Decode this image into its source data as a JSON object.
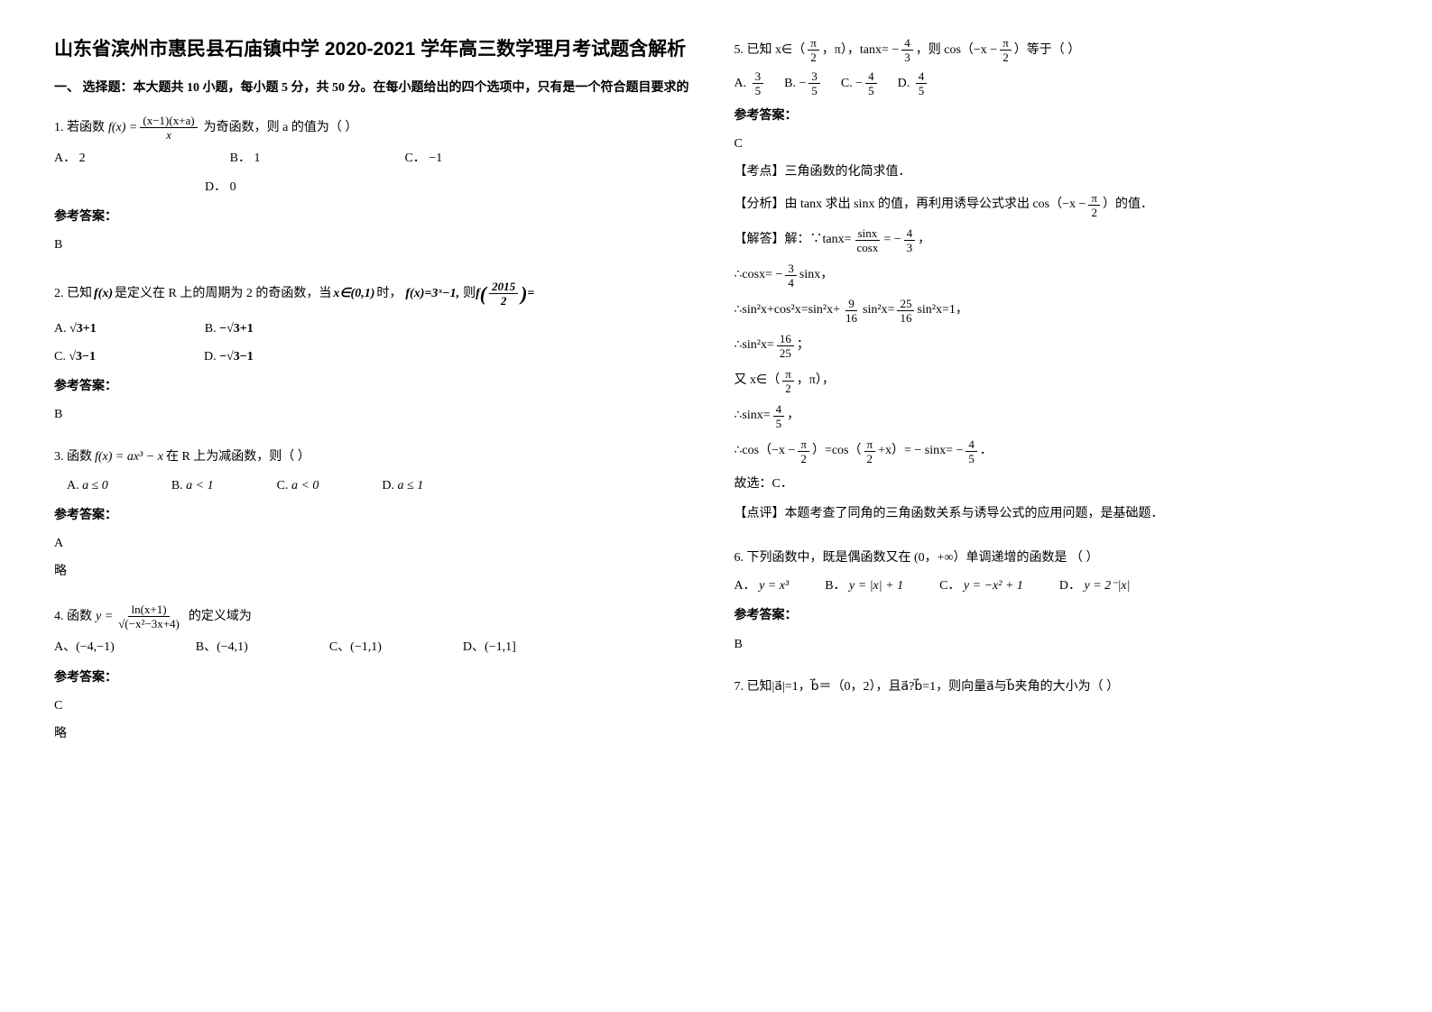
{
  "title": "山东省滨州市惠民县石庙镇中学 2020-2021 学年高三数学理月考试题含解析",
  "section1_header": "一、 选择题：本大题共 10 小题，每小题 5 分，共 50 分。在每小题给出的四个选项中，只有是一个符合题目要求的",
  "q1": {
    "prefix": "1. 若函数",
    "formula_img": "f(x) = (x−1)(x+a) / x",
    "suffix": "为奇函数，则 a 的值为（  ）",
    "optA": "A．  2",
    "optB": "B．  1",
    "optC": "C．  −1",
    "optD": "D．  0",
    "ans_label": "参考答案：",
    "ans": "B"
  },
  "q2": {
    "text1": "2. 已知",
    "fx": "f(x)",
    "text2": " 是定义在 R 上的周期为 2 的奇函数，当 ",
    "cond": "x∈(0,1)",
    "text3": "时，",
    "fx_eq": "f(x)=3ˣ−1,",
    "text4": " 则",
    "fval": "f(2015/2)=",
    "optA_label": "A.",
    "optA": "√3+1",
    "optB_label": "B.",
    "optB": "−√3+1",
    "optC_label": "C.",
    "optC": "√3−1",
    "optD_label": "D.",
    "optD": "−√3−1",
    "ans_label": "参考答案：",
    "ans": "B"
  },
  "q3": {
    "text": "3. 函数",
    "fx": "f(x) = ax³ − x",
    "suffix": " 在 R 上为减函数，则（    ）",
    "optA_label": "A.",
    "optA": "a ≤ 0",
    "optB_label": "B.",
    "optB": "a < 1",
    "optC_label": "C.",
    "optC": "a < 0",
    "optD_label": "D.",
    "optD": "a ≤ 1",
    "ans_label": "参考答案：",
    "ans": "A",
    "note": "略"
  },
  "q4": {
    "text": "4. 函数",
    "y_eq_num": "ln(x+1)",
    "y_eq_den": "√(−x²−3x+4)",
    "suffix": " 的定义域为",
    "optA_label": "A、",
    "optA": "(−4,−1)",
    "optB_label": "B、",
    "optB": "(−4,1)",
    "optC_label": "C、",
    "optC": "(−1,1)",
    "optD_label": "D、",
    "optD": "(−1,1]",
    "ans_label": "参考答案：",
    "ans": "C",
    "note": "略"
  },
  "q5": {
    "text1": "5. 已知 x∈（",
    "frac1_num": "π",
    "frac1_den": "2",
    "text2": "，π），tanx= −",
    "frac2_num": "4",
    "frac2_den": "3",
    "text3": "，则 cos（−x −",
    "frac3_num": "π",
    "frac3_den": "2",
    "text4": "）等于（    ）",
    "optA_label": "A.",
    "optA_num": "3",
    "optA_den": "5",
    "optB_label": "B.",
    "optB_neg": "−",
    "optB_num": "3",
    "optB_den": "5",
    "optC_label": "C.",
    "optC_neg": "−",
    "optC_num": "4",
    "optC_den": "5",
    "optD_label": "D.",
    "optD_num": "4",
    "optD_den": "5",
    "ans_label": "参考答案：",
    "ans": "C",
    "kd_label": "【考点】",
    "kd": "三角函数的化简求值．",
    "fx_label": "【分析】",
    "fx_text1": "由 tanx 求出 sinx 的值，再利用诱导公式求出 cos（−x −",
    "fx_pi_num": "π",
    "fx_pi_den": "2",
    "fx_text2": "）的值．",
    "sol_label": "【解答】",
    "sol_l1a": "解：∵tanx=",
    "sol_l1_num": "sinx",
    "sol_l1_den": "cosx",
    "sol_l1b": " = −",
    "sol_l1c_num": "4",
    "sol_l1c_den": "3",
    "sol_l1d": "，",
    "sol_l2a": "∴cosx= −",
    "sol_l2_num": "3",
    "sol_l2_den": "4",
    "sol_l2b": " sinx，",
    "sol_l3a": "∴sin²x+cos²x=sin²x+",
    "sol_l3_num": "9",
    "sol_l3_den": "16",
    "sol_l3b": " sin²x=",
    "sol_l3c_num": "25",
    "sol_l3c_den": "16",
    "sol_l3d": " sin²x=1，",
    "sol_l4a": "∴sin²x=",
    "sol_l4_num": "16",
    "sol_l4_den": "25",
    "sol_l4b": "；",
    "sol_l5a": "又 x∈（",
    "sol_l5_num": "π",
    "sol_l5_den": "2",
    "sol_l5b": "，π），",
    "sol_l6a": "∴sinx=",
    "sol_l6_num": "4",
    "sol_l6_den": "5",
    "sol_l6b": "，",
    "sol_l7a": "∴cos（−x −",
    "sol_l7_num": "π",
    "sol_l7_den": "2",
    "sol_l7b": "）=cos（",
    "sol_l7c_num": "π",
    "sol_l7c_den": "2",
    "sol_l7d": " +x）= − sinx= −",
    "sol_l7e_num": "4",
    "sol_l7e_den": "5",
    "sol_l7f": "．",
    "sol_l8": "故选：C．",
    "dp_label": "【点评】",
    "dp": "本题考查了同角的三角函数关系与诱导公式的应用问题，是基础题．"
  },
  "q6": {
    "text": "6. 下列函数中，既是偶函数又在 (0，+∞）单调递增的函数是 （   ）",
    "optA_label": "A．",
    "optA": "y = x³",
    "optB_label": "B．",
    "optB": "y = |x| + 1",
    "optC_label": "C．",
    "optC": "y = −x² + 1",
    "optD_label": "D．",
    "optD": "y = 2⁻|x|",
    "ans_label": "参考答案：",
    "ans": "B"
  },
  "q7": {
    "text1": "7. 已知|",
    "vec_a1": "a⃗",
    "text2": "|=1，",
    "vec_b1": "b⃗",
    "text3": "＝（0，2），且 ",
    "vec_a2": "a⃗",
    "dot": "?",
    "vec_b2": "b⃗",
    "text4": "=1，则向量",
    "vec_a3": "a⃗",
    "text5": "与",
    "vec_b3": "b⃗",
    "text6": "夹角的大小为（    ）"
  }
}
